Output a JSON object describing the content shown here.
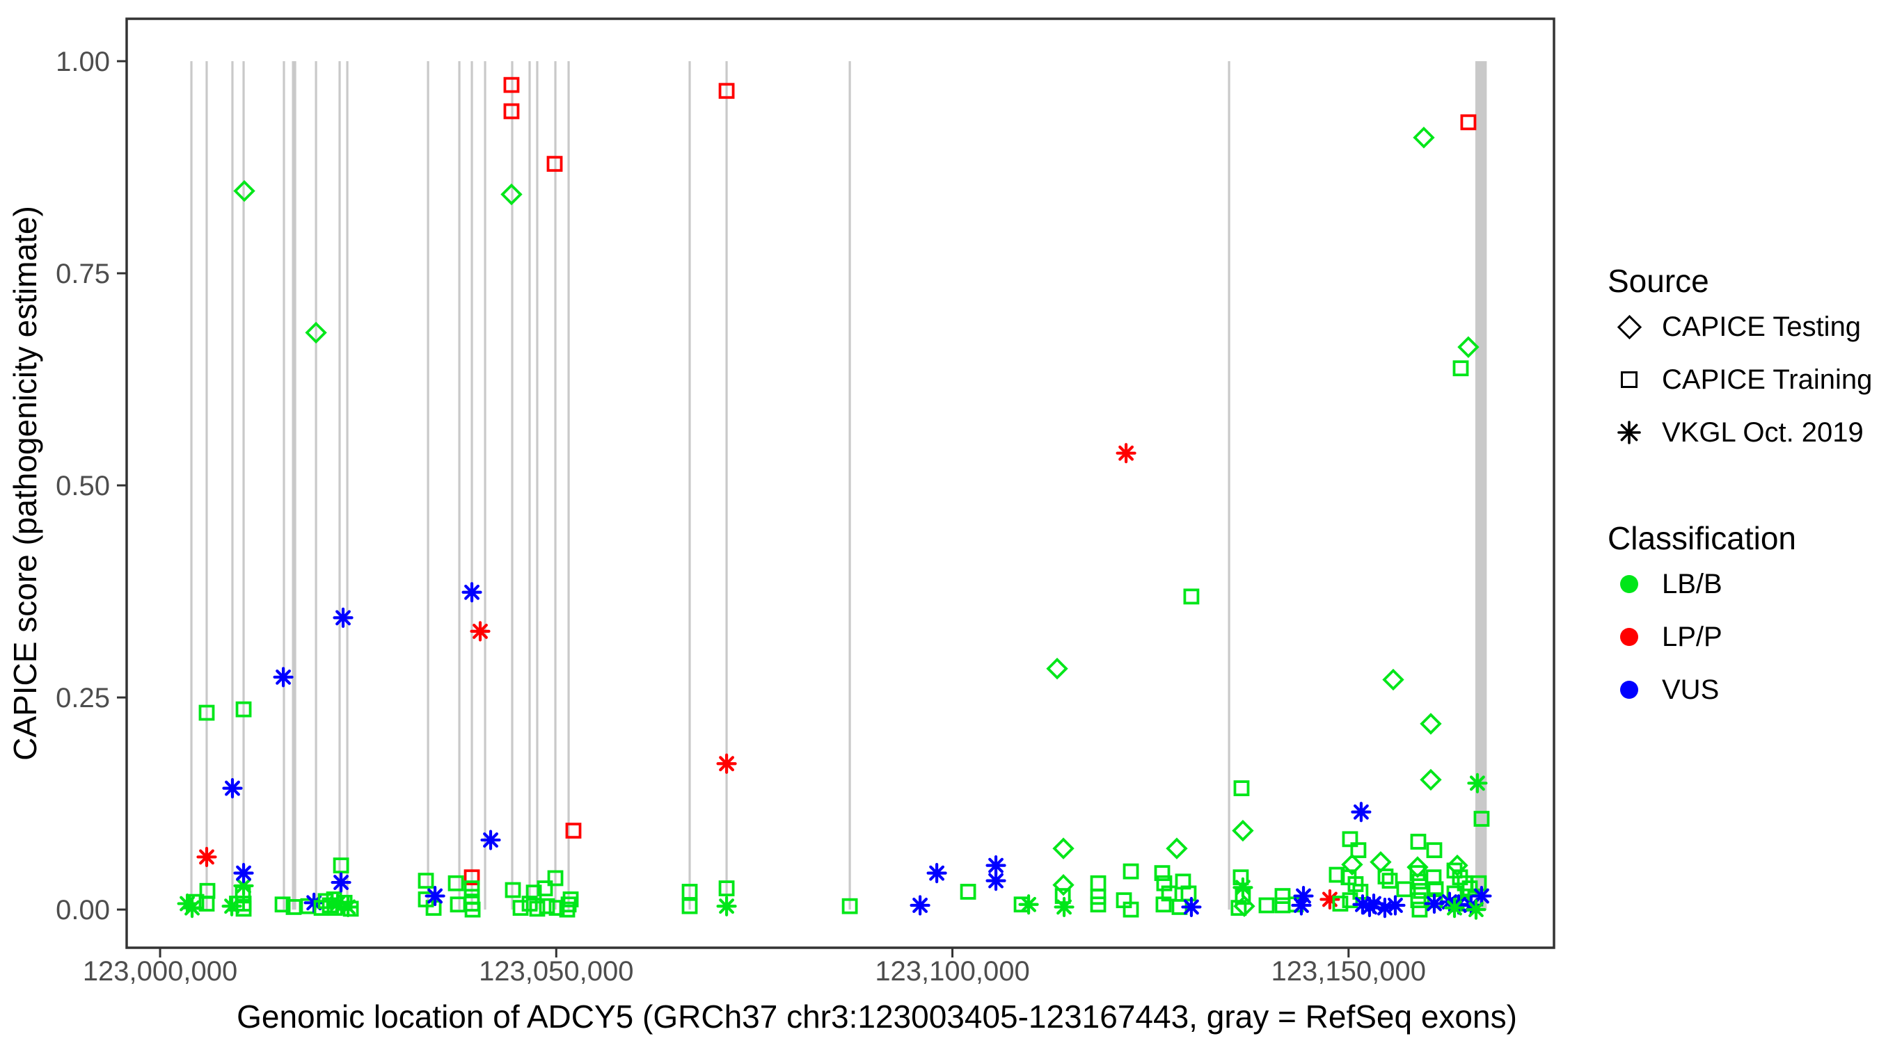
{
  "chart_data": {
    "type": "scatter",
    "title": "",
    "xlabel": "Genomic location of ADCY5 (GRCh37 chr3:123003405-123167443, gray = RefSeq exons)",
    "ylabel": "CAPICE score (pathogenicity estimate)",
    "xlim": [
      122995780,
      123175930
    ],
    "ylim": [
      -0.045,
      1.05
    ],
    "grid": false,
    "legend_position": "right",
    "x_ticks": [
      {
        "value": 123000000,
        "label": "123,000,000"
      },
      {
        "value": 123050000,
        "label": "123,050,000"
      },
      {
        "value": 123100000,
        "label": "123,100,000"
      },
      {
        "value": 123150000,
        "label": "123,150,000"
      }
    ],
    "y_ticks": [
      {
        "value": 0.0,
        "label": "0.00"
      },
      {
        "value": 0.25,
        "label": "0.25"
      },
      {
        "value": 0.5,
        "label": "0.50"
      },
      {
        "value": 0.75,
        "label": "0.75"
      },
      {
        "value": 1.0,
        "label": "1.00"
      }
    ],
    "exon_color": "#c9c9c9",
    "refseq_exon_lines_bp": [
      123003950,
      123005880,
      123009130,
      123010540,
      123015630,
      123016780,
      123017040,
      123019680,
      123022660,
      123023630,
      123033820,
      123037770,
      123039350,
      123041020,
      123044440,
      123046640,
      123047600,
      123049890,
      123051560,
      123066840,
      123071500,
      123087050,
      123134920
    ],
    "refseq_exon_block_bp": {
      "start": 123166000,
      "end": 123167443
    },
    "source_shapes": {
      "testing": "diamond",
      "training": "square",
      "vkgl": "asterisk"
    },
    "class_colors": {
      "LB/B": "#00e619",
      "LP/P": "#ff0000",
      "VUS": "#0000ff"
    },
    "points_format": [
      "bp",
      "score",
      "source",
      "classification"
    ],
    "points": [
      [
        123003430,
        0.007,
        "vkgl",
        "LB/B"
      ],
      [
        123004040,
        0.002,
        "vkgl",
        "LB/B"
      ],
      [
        123004570,
        0.009,
        "training",
        "LB/B"
      ],
      [
        123005880,
        0.232,
        "training",
        "LB/B"
      ],
      [
        123005970,
        0.022,
        "training",
        "LB/B"
      ],
      [
        123005880,
        0.007,
        "training",
        "LB/B"
      ],
      [
        123005880,
        0.062,
        "vkgl",
        "LP/P"
      ],
      [
        123009050,
        0.004,
        "vkgl",
        "LB/B"
      ],
      [
        123009130,
        0.143,
        "vkgl",
        "VUS"
      ],
      [
        123009700,
        0.007,
        "training",
        "LB/B"
      ],
      [
        123010540,
        0.236,
        "training",
        "LB/B"
      ],
      [
        123010630,
        0.847,
        "testing",
        "LB/B"
      ],
      [
        123010540,
        0.028,
        "vkgl",
        "LB/B"
      ],
      [
        123010450,
        0.019,
        "training",
        "LB/B"
      ],
      [
        123010540,
        0.007,
        "training",
        "LB/B"
      ],
      [
        123010540,
        0.043,
        "vkgl",
        "VUS"
      ],
      [
        123010540,
        0.001,
        "training",
        "LB/B"
      ],
      [
        123015460,
        0.006,
        "training",
        "LB/B"
      ],
      [
        123015550,
        0.274,
        "vkgl",
        "VUS"
      ],
      [
        123016860,
        0.003,
        "training",
        "LB/B"
      ],
      [
        123018700,
        0.004,
        "training",
        "LB/B"
      ],
      [
        123019680,
        0.68,
        "testing",
        "LB/B"
      ],
      [
        123019420,
        0.008,
        "vkgl",
        "VUS"
      ],
      [
        123020380,
        0.002,
        "training",
        "LB/B"
      ],
      [
        123020900,
        0.01,
        "training",
        "LB/B"
      ],
      [
        123021430,
        0.005,
        "training",
        "LB/B"
      ],
      [
        123021960,
        0.012,
        "training",
        "LB/B"
      ],
      [
        123022050,
        0.002,
        "training",
        "LB/B"
      ],
      [
        123022840,
        0.052,
        "training",
        "LB/B"
      ],
      [
        123022400,
        0.007,
        "vkgl",
        "LB/B"
      ],
      [
        123023100,
        0.344,
        "vkgl",
        "VUS"
      ],
      [
        123022840,
        0.032,
        "vkgl",
        "VUS"
      ],
      [
        123023280,
        0.008,
        "training",
        "LB/B"
      ],
      [
        123023720,
        0.003,
        "vkgl",
        "LB/B"
      ],
      [
        123024070,
        0.001,
        "training",
        "LB/B"
      ],
      [
        123033550,
        0.034,
        "training",
        "LB/B"
      ],
      [
        123033550,
        0.012,
        "training",
        "LB/B"
      ],
      [
        123034520,
        0.002,
        "training",
        "LB/B"
      ],
      [
        123034700,
        0.016,
        "vkgl",
        "VUS"
      ],
      [
        123037330,
        0.031,
        "training",
        "LB/B"
      ],
      [
        123037590,
        0.006,
        "training",
        "LB/B"
      ],
      [
        123039350,
        0.374,
        "vkgl",
        "VUS"
      ],
      [
        123039350,
        0.038,
        "training",
        "LP/P"
      ],
      [
        123039350,
        0.025,
        "training",
        "LB/B"
      ],
      [
        123039350,
        0.015,
        "training",
        "LB/B"
      ],
      [
        123039350,
        0.007,
        "training",
        "LB/B"
      ],
      [
        123039440,
        0.0,
        "training",
        "LB/B"
      ],
      [
        123040400,
        0.328,
        "vkgl",
        "LP/P"
      ],
      [
        123041720,
        0.082,
        "vkgl",
        "VUS"
      ],
      [
        123044350,
        0.972,
        "training",
        "LP/P"
      ],
      [
        123044350,
        0.941,
        "training",
        "LP/P"
      ],
      [
        123044350,
        0.843,
        "testing",
        "LB/B"
      ],
      [
        123044530,
        0.023,
        "training",
        "LB/B"
      ],
      [
        123045500,
        0.002,
        "training",
        "LB/B"
      ],
      [
        123046640,
        0.007,
        "training",
        "LB/B"
      ],
      [
        123047170,
        0.02,
        "training",
        "LB/B"
      ],
      [
        123047600,
        0.001,
        "training",
        "LB/B"
      ],
      [
        123048570,
        0.025,
        "training",
        "LB/B"
      ],
      [
        123048830,
        0.004,
        "training",
        "LB/B"
      ],
      [
        123049800,
        0.879,
        "training",
        "LP/P"
      ],
      [
        123049890,
        0.037,
        "training",
        "LB/B"
      ],
      [
        123050060,
        0.002,
        "training",
        "LB/B"
      ],
      [
        123051380,
        0.0,
        "training",
        "LB/B"
      ],
      [
        123051820,
        0.012,
        "training",
        "LB/B"
      ],
      [
        123052170,
        0.093,
        "training",
        "LP/P"
      ],
      [
        123051560,
        0.006,
        "training",
        "LB/B"
      ],
      [
        123066840,
        0.021,
        "training",
        "LB/B"
      ],
      [
        123066840,
        0.004,
        "training",
        "LB/B"
      ],
      [
        123071500,
        0.965,
        "training",
        "LP/P"
      ],
      [
        123071500,
        0.172,
        "vkgl",
        "LP/P"
      ],
      [
        123071500,
        0.025,
        "training",
        "LB/B"
      ],
      [
        123071500,
        0.004,
        "vkgl",
        "LB/B"
      ],
      [
        123087050,
        0.004,
        "training",
        "LB/B"
      ],
      [
        123095920,
        0.005,
        "vkgl",
        "VUS"
      ],
      [
        123098030,
        0.043,
        "vkgl",
        "VUS"
      ],
      [
        123101980,
        0.021,
        "training",
        "LB/B"
      ],
      [
        123105490,
        0.052,
        "vkgl",
        "VUS"
      ],
      [
        123105490,
        0.034,
        "vkgl",
        "VUS"
      ],
      [
        123108740,
        0.006,
        "training",
        "LB/B"
      ],
      [
        123109620,
        0.006,
        "vkgl",
        "LB/B"
      ],
      [
        123113220,
        0.284,
        "testing",
        "LB/B"
      ],
      [
        123114010,
        0.072,
        "testing",
        "LB/B"
      ],
      [
        123114010,
        0.029,
        "testing",
        "LB/B"
      ],
      [
        123113930,
        0.016,
        "training",
        "LB/B"
      ],
      [
        123114100,
        0.003,
        "vkgl",
        "LB/B"
      ],
      [
        123118400,
        0.031,
        "training",
        "LB/B"
      ],
      [
        123118400,
        0.015,
        "training",
        "LB/B"
      ],
      [
        123118400,
        0.006,
        "training",
        "LB/B"
      ],
      [
        123121920,
        0.538,
        "vkgl",
        "LP/P"
      ],
      [
        123122530,
        0.045,
        "training",
        "LB/B"
      ],
      [
        123121650,
        0.011,
        "training",
        "LB/B"
      ],
      [
        123122530,
        0.0,
        "training",
        "LB/B"
      ],
      [
        123128320,
        0.072,
        "testing",
        "LB/B"
      ],
      [
        123126480,
        0.043,
        "training",
        "LB/B"
      ],
      [
        123126740,
        0.031,
        "training",
        "LB/B"
      ],
      [
        123127360,
        0.019,
        "training",
        "LB/B"
      ],
      [
        123129110,
        0.033,
        "training",
        "LB/B"
      ],
      [
        123129810,
        0.019,
        "training",
        "LB/B"
      ],
      [
        123126650,
        0.006,
        "training",
        "LB/B"
      ],
      [
        123128670,
        0.003,
        "training",
        "LB/B"
      ],
      [
        123130160,
        0.003,
        "vkgl",
        "VUS"
      ],
      [
        123130160,
        0.369,
        "training",
        "LB/B"
      ],
      [
        123136490,
        0.143,
        "training",
        "LB/B"
      ],
      [
        123136660,
        0.093,
        "testing",
        "LB/B"
      ],
      [
        123136400,
        0.038,
        "training",
        "LB/B"
      ],
      [
        123136660,
        0.026,
        "vkgl",
        "LB/B"
      ],
      [
        123136660,
        0.015,
        "training",
        "LB/B"
      ],
      [
        123136840,
        0.004,
        "testing",
        "LB/B"
      ],
      [
        123136130,
        0.002,
        "training",
        "LB/B"
      ],
      [
        123139650,
        0.005,
        "training",
        "LB/B"
      ],
      [
        123141670,
        0.016,
        "training",
        "LB/B"
      ],
      [
        123141670,
        0.005,
        "training",
        "LB/B"
      ],
      [
        123143340,
        0.006,
        "training",
        "LB/B"
      ],
      [
        123144310,
        0.016,
        "vkgl",
        "VUS"
      ],
      [
        123144040,
        0.005,
        "vkgl",
        "VUS"
      ],
      [
        123147640,
        0.012,
        "vkgl",
        "LP/P"
      ],
      [
        123148520,
        0.041,
        "training",
        "LB/B"
      ],
      [
        123148960,
        0.007,
        "training",
        "LB/B"
      ],
      [
        123150190,
        0.083,
        "training",
        "LB/B"
      ],
      [
        123151240,
        0.07,
        "training",
        "LB/B"
      ],
      [
        123151590,
        0.115,
        "vkgl",
        "VUS"
      ],
      [
        123150450,
        0.053,
        "testing",
        "LB/B"
      ],
      [
        123150010,
        0.038,
        "training",
        "LB/B"
      ],
      [
        123150890,
        0.03,
        "training",
        "LB/B"
      ],
      [
        123151500,
        0.021,
        "training",
        "LB/B"
      ],
      [
        123150190,
        0.011,
        "training",
        "LB/B"
      ],
      [
        123151770,
        0.006,
        "vkgl",
        "VUS"
      ],
      [
        123152650,
        0.003,
        "vkgl",
        "VUS"
      ],
      [
        123154050,
        0.056,
        "testing",
        "LB/B"
      ],
      [
        123154670,
        0.039,
        "training",
        "LB/B"
      ],
      [
        123155200,
        0.034,
        "training",
        "LB/B"
      ],
      [
        123157040,
        0.024,
        "training",
        "LB/B"
      ],
      [
        123153180,
        0.007,
        "vkgl",
        "VUS"
      ],
      [
        123154580,
        0.002,
        "vkgl",
        "VUS"
      ],
      [
        123155900,
        0.005,
        "vkgl",
        "VUS"
      ],
      [
        123155640,
        0.271,
        "testing",
        "LB/B"
      ],
      [
        123159500,
        0.91,
        "testing",
        "LB/B"
      ],
      [
        123160380,
        0.219,
        "testing",
        "LB/B"
      ],
      [
        123160380,
        0.153,
        "testing",
        "LB/B"
      ],
      [
        123164160,
        0.638,
        "training",
        "LB/B"
      ],
      [
        123165120,
        0.928,
        "training",
        "LP/P"
      ],
      [
        123165120,
        0.663,
        "testing",
        "LB/B"
      ],
      [
        123158800,
        0.08,
        "training",
        "LB/B"
      ],
      [
        123160820,
        0.07,
        "training",
        "LB/B"
      ],
      [
        123163720,
        0.052,
        "testing",
        "LB/B"
      ],
      [
        123158710,
        0.05,
        "testing",
        "LB/B"
      ],
      [
        123158710,
        0.043,
        "training",
        "LB/B"
      ],
      [
        123158970,
        0.033,
        "training",
        "LB/B"
      ],
      [
        123159150,
        0.022,
        "training",
        "LB/B"
      ],
      [
        123158800,
        0.011,
        "training",
        "LB/B"
      ],
      [
        123160730,
        0.038,
        "training",
        "LB/B"
      ],
      [
        123161000,
        0.024,
        "training",
        "LB/B"
      ],
      [
        123160910,
        0.011,
        "training",
        "LB/B"
      ],
      [
        123158970,
        0.0,
        "training",
        "LB/B"
      ],
      [
        123163370,
        0.046,
        "training",
        "LB/B"
      ],
      [
        123164070,
        0.038,
        "training",
        "LB/B"
      ],
      [
        123164690,
        0.031,
        "training",
        "LB/B"
      ],
      [
        123163370,
        0.019,
        "training",
        "LB/B"
      ],
      [
        123165300,
        0.025,
        "training",
        "LB/B"
      ],
      [
        123166440,
        0.031,
        "training",
        "LB/B"
      ],
      [
        123166000,
        0.013,
        "training",
        "LB/B"
      ],
      [
        123164250,
        0.007,
        "training",
        "LB/B"
      ],
      [
        123160820,
        0.007,
        "vkgl",
        "VUS"
      ],
      [
        123162750,
        0.009,
        "vkgl",
        "VUS"
      ],
      [
        123163890,
        0.006,
        "vkgl",
        "VUS"
      ],
      [
        123165470,
        0.005,
        "vkgl",
        "VUS"
      ],
      [
        123166790,
        0.016,
        "vkgl",
        "VUS"
      ],
      [
        123163370,
        0.002,
        "vkgl",
        "LB/B"
      ],
      [
        123166090,
        0.0,
        "vkgl",
        "LB/B"
      ],
      [
        123166790,
        0.107,
        "training",
        "LB/B"
      ],
      [
        123166260,
        0.149,
        "vkgl",
        "LB/B"
      ]
    ]
  },
  "legend": {
    "source_title": "Source",
    "source_items": [
      {
        "label": "CAPICE Testing",
        "shape": "diamond"
      },
      {
        "label": "CAPICE Training",
        "shape": "square"
      },
      {
        "label": "VKGL Oct. 2019",
        "shape": "asterisk"
      }
    ],
    "class_title": "Classification",
    "class_items": [
      {
        "label": "LB/B",
        "color": "#00e619"
      },
      {
        "label": "LP/P",
        "color": "#ff0000"
      },
      {
        "label": "VUS",
        "color": "#0000ff"
      }
    ]
  }
}
